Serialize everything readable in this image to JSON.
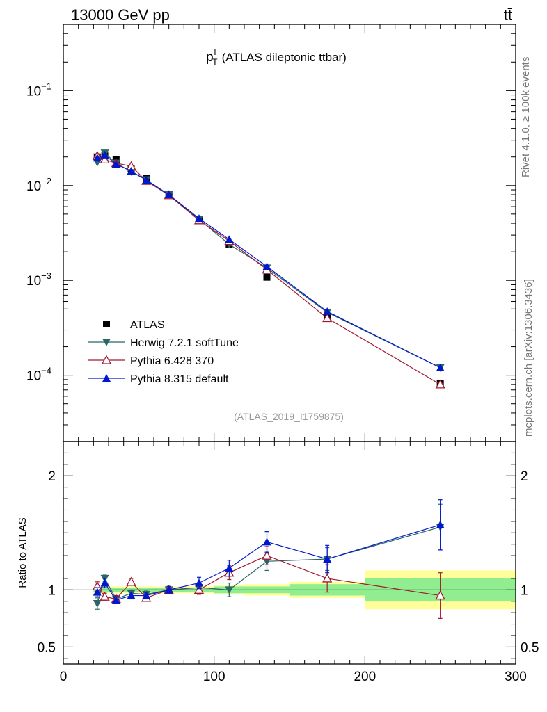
{
  "header": {
    "energy_label": "13000 GeV pp",
    "process_label": "tt̄"
  },
  "side_labels": {
    "rivet": "Rivet 4.1.0, ≥ 100k events",
    "mcplots": "mcplots.cern.ch [arXiv:1306.3436]"
  },
  "chart_data": [
    {
      "type": "scatter",
      "panel": "main",
      "title_main": "p",
      "title_sup": "l",
      "title_sub": "T",
      "title_rest": "(ATLAS dileptonic ttbar)",
      "analysis_label": "(ATLAS_2019_I1759875)",
      "yscale": "log",
      "xlim": [
        0,
        300
      ],
      "ylim": [
        2e-05,
        0.5
      ],
      "ytick_labels": [
        {
          "base": "10",
          "exp": "−1",
          "value": 0.1
        },
        {
          "base": "10",
          "exp": "−2",
          "value": 0.01
        },
        {
          "base": "10",
          "exp": "−3",
          "value": 0.001
        },
        {
          "base": "10",
          "exp": "−4",
          "value": 0.0001
        }
      ],
      "legend_position": "bottom-left",
      "x": [
        22.5,
        27.5,
        35,
        45,
        55,
        70,
        90,
        110,
        135,
        175,
        250
      ],
      "series": [
        {
          "name": "ATLAS",
          "color": "#000000",
          "marker": "square",
          "line": false,
          "values": [
            0.02,
            0.0205,
            0.0188,
            0.015,
            0.012,
            0.0079,
            0.0043,
            0.0024,
            0.00108,
            0.0004,
            8.2e-05
          ]
        },
        {
          "name": "Herwig 7.2.1 softTune",
          "color": "#2b6567",
          "marker": "triangle-down",
          "line": true,
          "values": [
            0.0175,
            0.022,
            0.0172,
            0.014,
            0.0115,
            0.008,
            0.0044,
            0.0024,
            0.00135,
            0.00046,
            0.00012
          ]
        },
        {
          "name": "Pythia 6.428 370",
          "color": "#a01830",
          "marker": "triangle-open",
          "line": true,
          "values": [
            0.0205,
            0.0188,
            0.0172,
            0.016,
            0.0112,
            0.0079,
            0.0043,
            0.0026,
            0.0013,
            0.0004,
            8e-05
          ]
        },
        {
          "name": "Pythia 8.315 default",
          "color": "#0018cc",
          "marker": "triangle-up",
          "line": true,
          "values": [
            0.0195,
            0.021,
            0.0168,
            0.0142,
            0.0114,
            0.008,
            0.0045,
            0.0027,
            0.0014,
            0.00047,
            0.00012
          ]
        }
      ]
    },
    {
      "type": "scatter",
      "panel": "ratio",
      "ylabel": "Ratio to ATLAS",
      "xlim": [
        0,
        300
      ],
      "ylim": [
        0.35,
        2.3
      ],
      "yticks": [
        0.5,
        1,
        2
      ],
      "ytick_labels": [
        "0.5",
        "1",
        "2"
      ],
      "xticks": [
        0,
        100,
        200,
        300
      ],
      "xtick_labels": [
        "0",
        "100",
        "200",
        "300"
      ],
      "bands": {
        "bin_edges": [
          20,
          25,
          30,
          40,
          50,
          60,
          80,
          100,
          120,
          150,
          200,
          300
        ],
        "stat_half_width": [
          0.02,
          0.02,
          0.02,
          0.02,
          0.02,
          0.02,
          0.02,
          0.03,
          0.03,
          0.05,
          0.1
        ],
        "total_half_width": [
          0.03,
          0.03,
          0.03,
          0.03,
          0.03,
          0.03,
          0.03,
          0.04,
          0.05,
          0.07,
          0.17
        ],
        "stat_color": "#90ee90",
        "total_color": "#ffff99"
      },
      "x": [
        22.5,
        27.5,
        35,
        45,
        55,
        70,
        90,
        110,
        135,
        175,
        250
      ],
      "series": [
        {
          "name": "Herwig 7.2.1 softTune",
          "color": "#2b6567",
          "values": [
            0.88,
            1.1,
            0.92,
            0.97,
            0.96,
            1.0,
            1.02,
            1.0,
            1.25,
            1.27,
            1.55
          ],
          "errors": [
            0.05,
            0.03,
            0.03,
            0.03,
            0.03,
            0.03,
            0.04,
            0.06,
            0.08,
            0.1,
            0.2
          ]
        },
        {
          "name": "Pythia 6.428 370",
          "color": "#a01830",
          "values": [
            1.03,
            0.94,
            0.92,
            1.07,
            0.93,
            1.0,
            1.0,
            1.15,
            1.3,
            1.1,
            0.95
          ],
          "errors": [
            0.04,
            0.03,
            0.03,
            0.03,
            0.03,
            0.03,
            0.04,
            0.06,
            0.08,
            0.12,
            0.2
          ]
        },
        {
          "name": "Pythia 8.315 default",
          "color": "#0018cc",
          "values": [
            0.98,
            1.06,
            0.91,
            0.95,
            0.95,
            1.0,
            1.06,
            1.19,
            1.42,
            1.27,
            1.57
          ],
          "errors": [
            0.04,
            0.04,
            0.03,
            0.03,
            0.03,
            0.03,
            0.05,
            0.07,
            0.09,
            0.12,
            0.22
          ]
        }
      ]
    }
  ]
}
